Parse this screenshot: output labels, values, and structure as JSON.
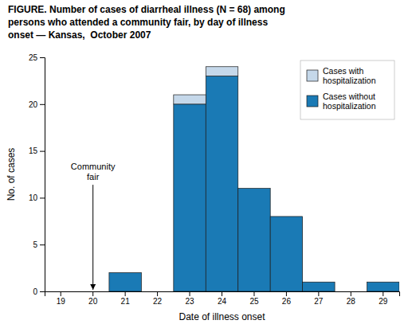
{
  "chart_data": {
    "type": "bar",
    "stacked": true,
    "title": "FIGURE. Number of cases of diarrheal illness (N = 68) among\npersons who attended a community fair, by day of illness\nonset — Kansas,  October 2007",
    "x_label": "Date of illness onset",
    "y_label": "No. of cases",
    "categories": [
      19,
      20,
      21,
      22,
      23,
      24,
      25,
      26,
      27,
      28,
      29
    ],
    "series": [
      {
        "name": "Cases without\nhospitalization",
        "color": "#1a7ab5",
        "values": [
          0,
          0,
          2,
          0,
          20,
          23,
          11,
          8,
          1,
          0,
          1
        ]
      },
      {
        "name": "Cases with\nhospitalization",
        "color": "#c5d8ea",
        "values": [
          0,
          0,
          0,
          0,
          1,
          1,
          0,
          0,
          0,
          0,
          0
        ]
      }
    ],
    "ylim": [
      0,
      25
    ],
    "yticks": [
      0,
      5,
      10,
      15,
      20,
      25
    ],
    "grid": false,
    "legend": "upper right",
    "annotations": [
      {
        "text": "Community\nfair",
        "x": 20
      }
    ]
  }
}
